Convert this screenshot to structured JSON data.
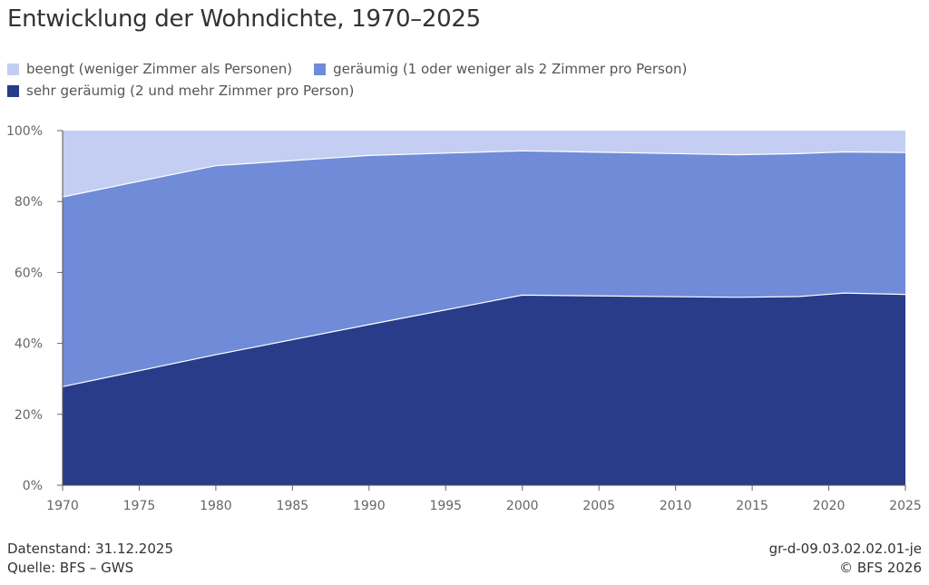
{
  "title": "Entwicklung der Wohndichte, 1970–2025",
  "legend": [
    {
      "label": "beengt (weniger Zimmer als Personen)",
      "color": "#c3cef2"
    },
    {
      "label": "geräumig (1 oder weniger als 2 Zimmer pro Person)",
      "color": "#708bd8"
    },
    {
      "label": "sehr geräumig (2 und mehr Zimmer pro Person)",
      "color": "#283c8a"
    }
  ],
  "chart_data": {
    "type": "area",
    "stacked": true,
    "title": "Entwicklung der Wohndichte, 1970–2025",
    "x": [
      1970,
      1980,
      1990,
      2000,
      2014,
      2018,
      2021,
      2025
    ],
    "xticks": [
      "1970",
      "1975",
      "1980",
      "1985",
      "1990",
      "1995",
      "2000",
      "2005",
      "2010",
      "2015",
      "2020",
      "2025"
    ],
    "yticks": [
      "0%",
      "20%",
      "40%",
      "60%",
      "80%",
      "100%"
    ],
    "ylim": [
      0,
      100
    ],
    "xlim": [
      1970,
      2025
    ],
    "grid": false,
    "legend_position": "top",
    "series": [
      {
        "name": "sehr geräumig (2 und mehr Zimmer pro Person)",
        "color": "#283c8a",
        "values": [
          27.8,
          36.8,
          45.3,
          53.6,
          53.0,
          53.2,
          54.2,
          53.8
        ]
      },
      {
        "name": "geräumig (1 oder weniger als 2 Zimmer pro Person)",
        "color": "#708bd8",
        "values": [
          53.5,
          53.3,
          47.7,
          40.7,
          40.2,
          40.3,
          39.8,
          40.0
        ]
      },
      {
        "name": "beengt (weniger Zimmer als Personen)",
        "color": "#c3cef2",
        "values": [
          18.7,
          9.9,
          7.0,
          5.7,
          6.8,
          6.5,
          6.0,
          6.2
        ]
      }
    ]
  },
  "footer": {
    "datenstand": "Datenstand: 31.12.2025",
    "quelle": "Quelle: BFS – GWS",
    "code": "gr-d-09.03.02.02.01-je",
    "copyright": "© BFS 2026"
  }
}
